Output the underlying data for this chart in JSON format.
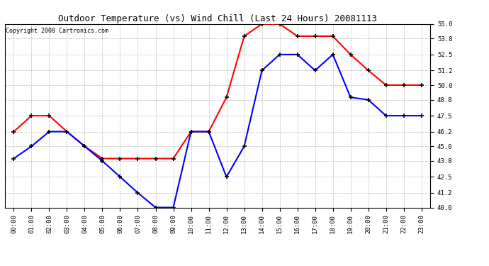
{
  "title": "Outdoor Temperature (vs) Wind Chill (Last 24 Hours) 20081113",
  "copyright": "Copyright 2008 Cartronics.com",
  "hours": [
    "00:00",
    "01:00",
    "02:00",
    "03:00",
    "04:00",
    "05:00",
    "06:00",
    "07:00",
    "08:00",
    "09:00",
    "10:00",
    "11:00",
    "12:00",
    "13:00",
    "14:00",
    "15:00",
    "16:00",
    "17:00",
    "18:00",
    "19:00",
    "20:00",
    "21:00",
    "22:00",
    "23:00"
  ],
  "outdoor_temp": [
    46.2,
    47.5,
    47.5,
    46.2,
    45.0,
    44.0,
    44.0,
    44.0,
    44.0,
    44.0,
    46.2,
    46.2,
    49.0,
    54.0,
    55.0,
    55.0,
    54.0,
    54.0,
    54.0,
    52.5,
    51.2,
    50.0,
    50.0,
    50.0
  ],
  "wind_chill": [
    44.0,
    45.0,
    46.2,
    46.2,
    45.0,
    43.8,
    42.5,
    41.2,
    40.0,
    40.0,
    46.2,
    46.2,
    42.5,
    45.0,
    51.2,
    52.5,
    52.5,
    51.2,
    52.5,
    49.0,
    48.8,
    47.5,
    47.5,
    47.5
  ],
  "temp_color": "#ff0000",
  "wind_chill_color": "#0000ff",
  "bg_color": "#ffffff",
  "grid_color": "#bbbbbb",
  "ylim": [
    40.0,
    55.0
  ],
  "yticks": [
    40.0,
    41.2,
    42.5,
    43.8,
    45.0,
    46.2,
    47.5,
    48.8,
    50.0,
    51.2,
    52.5,
    53.8,
    55.0
  ],
  "title_fontsize": 9,
  "copyright_fontsize": 6,
  "tick_fontsize": 6.5,
  "marker_size": 4,
  "linewidth": 1.5
}
